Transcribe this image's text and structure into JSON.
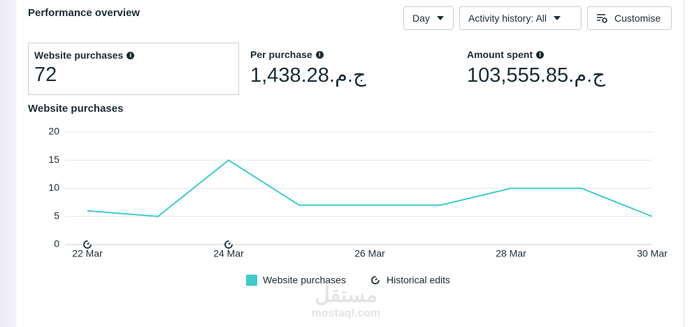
{
  "header": {
    "title": "Performance overview",
    "controls": [
      "Day",
      "Activity history: All",
      "Customise"
    ]
  },
  "metrics": [
    {
      "label": "Website purchases",
      "value": "72"
    },
    {
      "label": "Per purchase",
      "value": "1,438.28",
      "currency": "ج.م."
    },
    {
      "label": "Amount spent",
      "value": "103,555.85",
      "currency": "ج.م."
    }
  ],
  "chart_data": {
    "type": "line",
    "title": "Website purchases",
    "categories": [
      "22 Mar",
      null,
      "24 Mar",
      null,
      "26 Mar",
      null,
      "28 Mar",
      null,
      "30 Mar"
    ],
    "series": [
      {
        "name": "Website purchases",
        "color": "#3ecccc",
        "values": [
          6,
          5,
          15,
          7,
          7,
          7,
          10,
          10,
          5
        ]
      }
    ],
    "ylim": [
      0,
      20
    ],
    "yticks": [
      0,
      5,
      10,
      15,
      20
    ],
    "grid": true,
    "historical_edits": {
      "name": "Historical edits",
      "at": [
        "22 Mar",
        "24 Mar"
      ]
    }
  },
  "watermark": {
    "arabic": "مستقل",
    "latin": "mostaql.com"
  }
}
